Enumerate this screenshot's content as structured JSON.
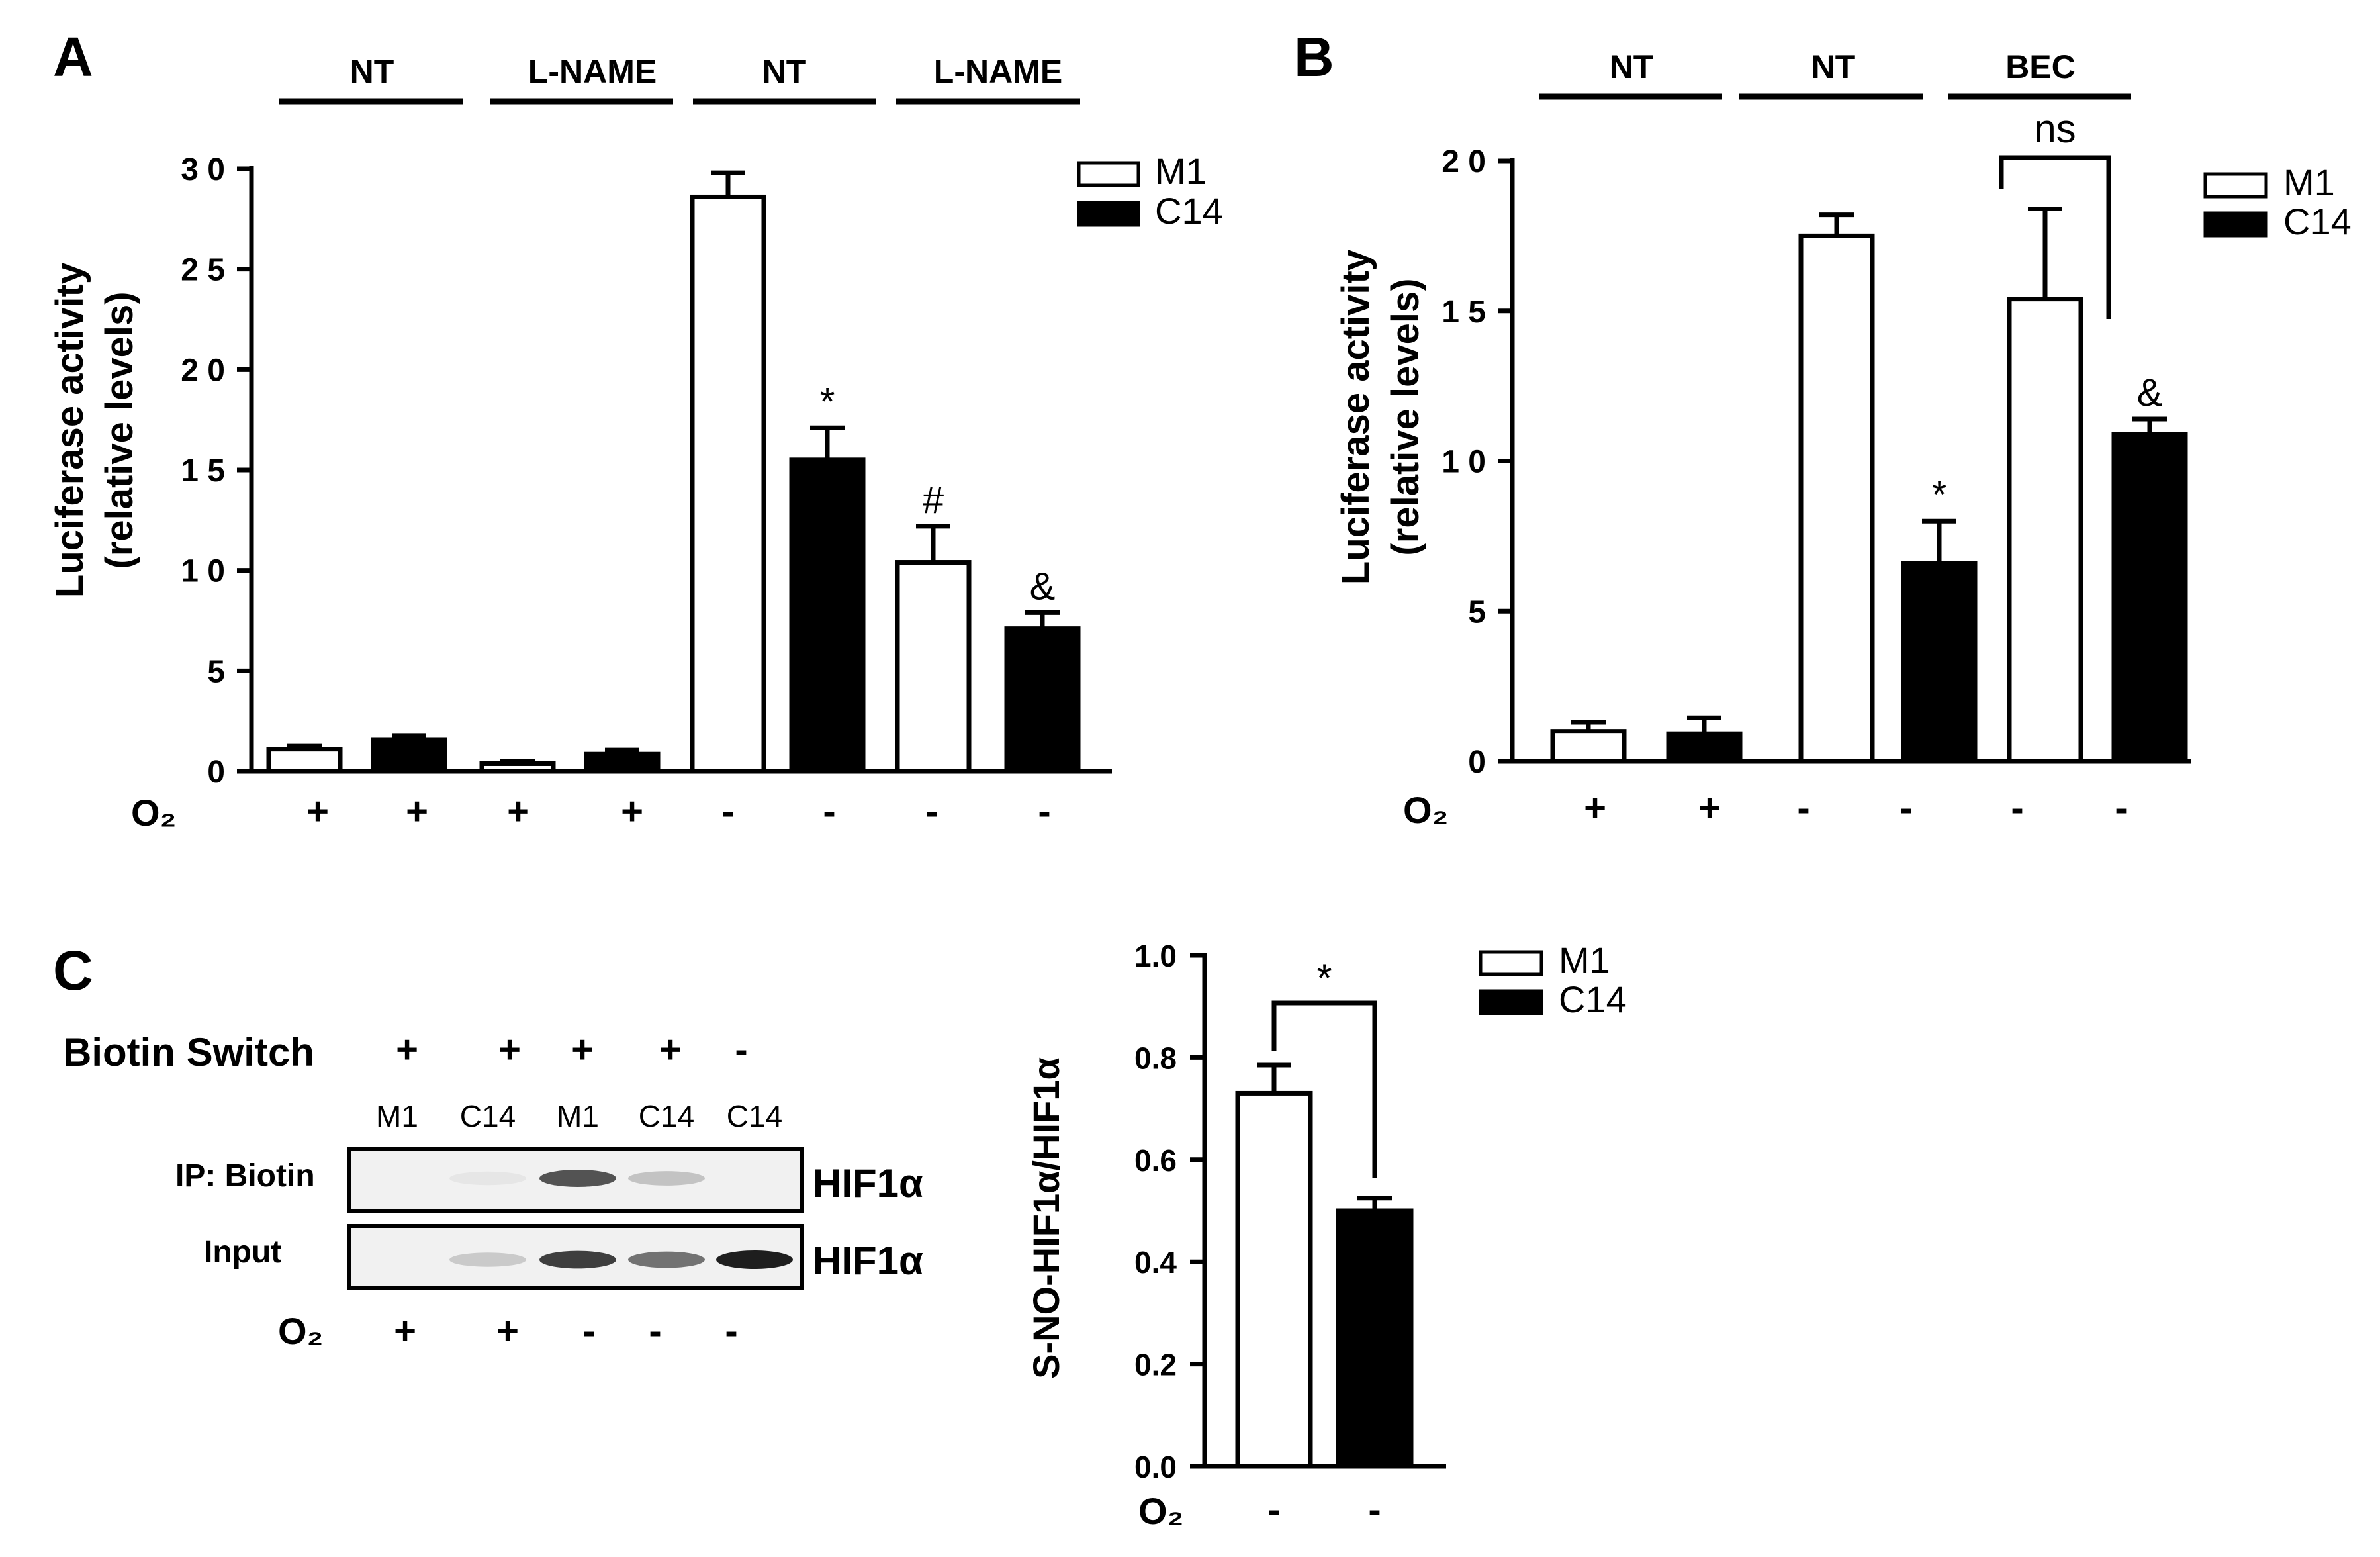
{
  "colors": {
    "ink": "#000000",
    "open_bar": "#ffffff",
    "filled_bar": "#000000",
    "blot_bg": "#f1f1f1",
    "band": "#1e1e1e"
  },
  "panels": {
    "A": {
      "letter": "A",
      "groups": [
        "NT",
        "L-NAME",
        "NT",
        "L-NAME"
      ],
      "ylabel_line1": "Luciferase activity",
      "ylabel_line2": "(relative levels)",
      "o2_label": "O₂",
      "o2_values": [
        "+",
        "+",
        "+",
        "+",
        "-",
        "-",
        "-",
        "-"
      ],
      "legend": [
        {
          "label": "M1",
          "fill": "#ffffff"
        },
        {
          "label": "C14",
          "fill": "#000000"
        }
      ]
    },
    "B": {
      "letter": "B",
      "groups": [
        "NT",
        "NT",
        "BEC"
      ],
      "ylabel_line1": "Luciferase activity",
      "ylabel_line2": "(relative levels)",
      "o2_label": "O₂",
      "o2_values": [
        "+",
        "+",
        "-",
        "-",
        "-",
        "-"
      ],
      "bracket_label": "ns",
      "legend": [
        {
          "label": "M1",
          "fill": "#ffffff"
        },
        {
          "label": "C14",
          "fill": "#000000"
        }
      ]
    },
    "C": {
      "letter": "C",
      "biotin_label": "Biotin Switch",
      "biotin_values": [
        "+",
        "+",
        "+",
        "+",
        "-"
      ],
      "lane_labels": [
        "M1",
        "C14",
        "M1",
        "C14",
        "C14"
      ],
      "blots": [
        {
          "row_label": "IP: Biotin",
          "protein": "HIF1α",
          "intensity": [
            0.0,
            0.05,
            0.75,
            0.22,
            0.0
          ]
        },
        {
          "row_label": "Input",
          "protein": "HIF1α",
          "intensity": [
            0.0,
            0.18,
            0.85,
            0.6,
            1.0
          ]
        }
      ],
      "o2_label": "O₂",
      "o2_values": [
        "+",
        "+",
        "-",
        "-",
        "-"
      ],
      "ylabel": "S-NO-HIF1α/HIF1α",
      "bar_o2_values": [
        "-",
        "-"
      ],
      "bracket_label": "*",
      "legend": [
        {
          "label": "M1",
          "fill": "#ffffff"
        },
        {
          "label": "C14",
          "fill": "#000000"
        }
      ]
    }
  },
  "chart_data": [
    {
      "panel": "A",
      "type": "bar",
      "title": "",
      "xlabel": "",
      "ylabel": "Luciferase activity (relative levels)",
      "ylim": [
        0,
        30
      ],
      "yticks": [
        0,
        5,
        10,
        15,
        20,
        25,
        30
      ],
      "categories": [
        "NT O2+ M1",
        "NT O2+ C14",
        "L-NAME O2+ M1",
        "L-NAME O2+ C14",
        "NT O2- M1",
        "NT O2- C14",
        "L-NAME O2- M1",
        "L-NAME O2- C14"
      ],
      "series": [
        {
          "name": "Luciferase activity",
          "values": [
            1.1,
            1.55,
            0.38,
            0.85,
            28.6,
            15.5,
            10.4,
            7.1
          ],
          "errors": [
            0.15,
            0.2,
            0.1,
            0.2,
            1.2,
            1.6,
            1.8,
            0.8
          ],
          "fills": [
            "#ffffff",
            "#000000",
            "#ffffff",
            "#000000",
            "#ffffff",
            "#000000",
            "#ffffff",
            "#000000"
          ]
        }
      ],
      "annotations": [
        "",
        "",
        "",
        "",
        "",
        "*",
        "#",
        "&"
      ]
    },
    {
      "panel": "B",
      "type": "bar",
      "title": "",
      "xlabel": "",
      "ylabel": "Luciferase activity (relative levels)",
      "ylim": [
        0,
        20
      ],
      "yticks": [
        0,
        5,
        10,
        15,
        20
      ],
      "categories": [
        "NT O2+ M1",
        "NT O2+ C14",
        "NT O2- M1",
        "NT O2- C14",
        "BEC O2- M1",
        "BEC O2- C14"
      ],
      "series": [
        {
          "name": "Luciferase activity",
          "values": [
            1.0,
            0.9,
            17.5,
            6.6,
            15.4,
            10.9
          ],
          "errors": [
            0.3,
            0.55,
            0.7,
            1.4,
            3.0,
            0.5
          ],
          "fills": [
            "#ffffff",
            "#000000",
            "#ffffff",
            "#000000",
            "#ffffff",
            "#000000"
          ]
        }
      ],
      "annotations": [
        "",
        "",
        "",
        "*",
        "",
        "&"
      ]
    },
    {
      "panel": "C",
      "type": "bar",
      "title": "",
      "xlabel": "",
      "ylabel": "S-NO-HIF1α/HIF1α",
      "ylim": [
        0,
        1.0
      ],
      "yticks": [
        0.0,
        0.2,
        0.4,
        0.6,
        0.8,
        1.0
      ],
      "categories": [
        "M1 O2-",
        "C14 O2-"
      ],
      "series": [
        {
          "name": "S-NO-HIF1α/HIF1α",
          "values": [
            0.73,
            0.5
          ],
          "errors": [
            0.055,
            0.025
          ],
          "fills": [
            "#ffffff",
            "#000000"
          ]
        }
      ],
      "annotations": [
        "",
        ""
      ]
    }
  ]
}
